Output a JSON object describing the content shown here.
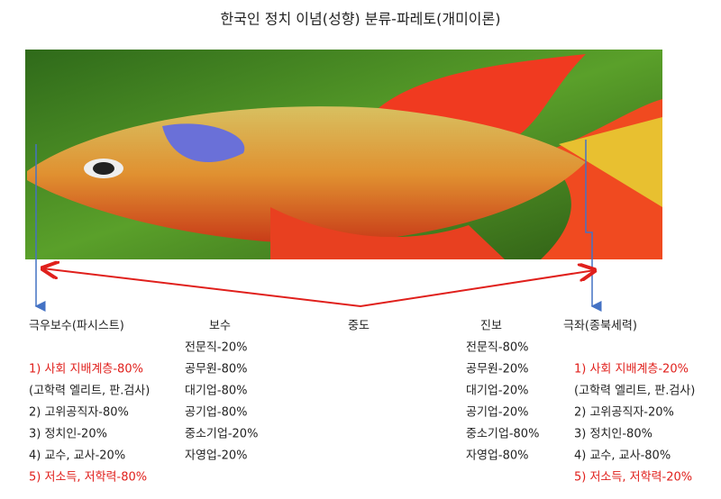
{
  "title": "한국인 정치 이념(성향) 분류-파레토(개미이론)",
  "columns": [
    {
      "heading": "극우보수(파시스트)",
      "items": [
        {
          "text": "1) 사회 지배계층-80%",
          "color": "#e0201c"
        },
        {
          "text": "(고학력 엘리트, 판.검사)"
        },
        {
          "text": "2) 고위공직자-80%"
        },
        {
          "text": "3) 정치인-20%"
        },
        {
          "text": "4) 교수, 교사-20%"
        },
        {
          "text": "5) 저소득, 저학력-80%",
          "color": "#e0201c"
        }
      ]
    },
    {
      "heading": "보수",
      "items": [
        {
          "text": "전문직-20%"
        },
        {
          "text": "공무원-80%"
        },
        {
          "text": "대기업-80%"
        },
        {
          "text": "공기업-80%"
        },
        {
          "text": "중소기업-20%"
        },
        {
          "text": "자영업-20%"
        }
      ]
    },
    {
      "heading": "중도",
      "items": []
    },
    {
      "heading": "진보",
      "items": [
        {
          "text": "전문직-80%"
        },
        {
          "text": "공무원-20%"
        },
        {
          "text": "대기업-20%"
        },
        {
          "text": "공기업-20%"
        },
        {
          "text": "중소기업-80%"
        },
        {
          "text": "자영업-80%"
        }
      ]
    },
    {
      "heading": "극좌(종북세력)",
      "items": [
        {
          "text": "1) 사회 지배계층-20%",
          "color": "#e0201c"
        },
        {
          "text": "(고학력 엘리트, 판.검사)"
        },
        {
          "text": "2) 고위공직자-20%"
        },
        {
          "text": "3) 정치인-80%"
        },
        {
          "text": "4) 교수, 교사-80%"
        },
        {
          "text": "5) 저소득, 저학력-20%",
          "color": "#e0201c"
        }
      ]
    }
  ]
}
